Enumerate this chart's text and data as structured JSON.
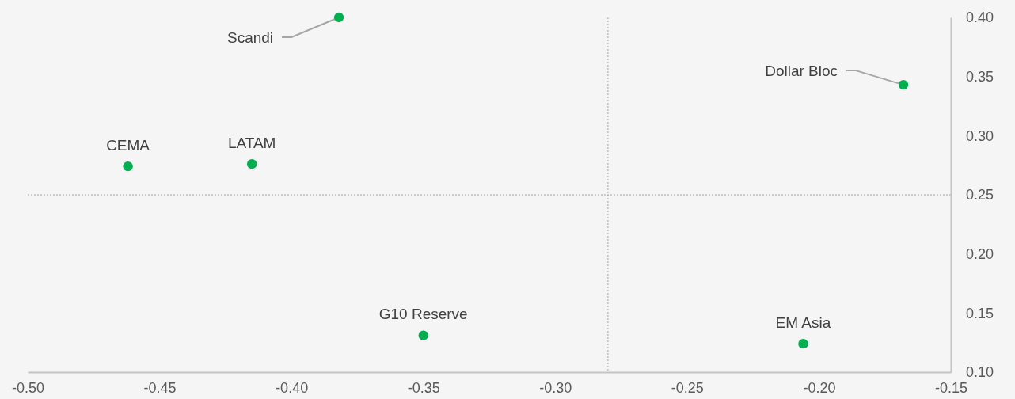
{
  "chart_data": {
    "type": "scatter",
    "marker": "circle",
    "xlim": [
      -0.5,
      -0.15
    ],
    "xticks": [
      {
        "value": -0.5,
        "label": "-0.50"
      },
      {
        "value": -0.45,
        "label": "-0.45"
      },
      {
        "value": -0.4,
        "label": "-0.40"
      },
      {
        "value": -0.35,
        "label": "-0.35"
      },
      {
        "value": -0.3,
        "label": "-0.30"
      },
      {
        "value": -0.25,
        "label": "-0.25"
      },
      {
        "value": -0.2,
        "label": "-0.20"
      },
      {
        "value": -0.15,
        "label": "-0.15"
      }
    ],
    "ylim": [
      0.1,
      0.4
    ],
    "yticks": [
      {
        "value": 0.1,
        "label": "0.10"
      },
      {
        "value": 0.15,
        "label": "0.15"
      },
      {
        "value": 0.2,
        "label": "0.20"
      },
      {
        "value": 0.25,
        "label": "0.25"
      },
      {
        "value": 0.3,
        "label": "0.30"
      },
      {
        "value": 0.35,
        "label": "0.35"
      },
      {
        "value": 0.4,
        "label": "0.40"
      }
    ],
    "series": [
      {
        "name": "Scandi",
        "color": "#00b050",
        "x": [
          -0.382
        ],
        "values": [
          0.4
        ]
      },
      {
        "name": "Dollar Bloc",
        "color": "#00b050",
        "x": [
          -0.168
        ],
        "values": [
          0.343
        ]
      },
      {
        "name": "CEMA",
        "color": "#00b050",
        "x": [
          -0.462
        ],
        "values": [
          0.274
        ]
      },
      {
        "name": "LATAM",
        "color": "#00b050",
        "x": [
          -0.415
        ],
        "values": [
          0.276
        ]
      },
      {
        "name": "G10 Reserve",
        "color": "#00b050",
        "x": [
          -0.35
        ],
        "values": [
          0.131
        ]
      },
      {
        "name": "EM Asia",
        "color": "#00b050",
        "x": [
          -0.206
        ],
        "values": [
          0.124
        ]
      }
    ],
    "ref_lines": [
      {
        "axis": "x",
        "value": -0.28,
        "color": "#a6a6a6",
        "line_style": "dotted"
      },
      {
        "axis": "y",
        "value": 0.25,
        "color": "#a6a6a6",
        "line_style": "dotted"
      }
    ]
  }
}
